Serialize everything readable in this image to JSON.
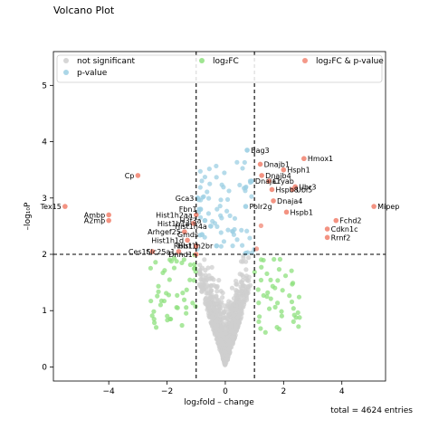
{
  "chart_data": {
    "type": "scatter",
    "title": "Volcano Plot",
    "xlabel": "log₂fold – change",
    "ylabel": "–log₁₀P",
    "xlim": [
      -5.9,
      5.5
    ],
    "ylim": [
      -0.25,
      5.6
    ],
    "xticks": [
      -4,
      -2,
      0,
      2,
      4
    ],
    "yticks": [
      0,
      1,
      2,
      3,
      4,
      5
    ],
    "grid": false,
    "legend_position": "top",
    "fc_cutoff": 1.0,
    "p_cutoff": 2.0,
    "categories": [
      {
        "key": "ns",
        "name": "not significant",
        "color": "#cfcfcf"
      },
      {
        "key": "p",
        "name": "p-value",
        "color": "#9ccfe3"
      },
      {
        "key": "fc",
        "name": "log₂FC",
        "color": "#8ee07e"
      },
      {
        "key": "both",
        "name": "log₂FC & p-value",
        "color": "#f28774"
      }
    ],
    "labeled_genes": [
      {
        "name": "Bag3",
        "x": 0.75,
        "y": 3.85
      },
      {
        "name": "Hmox1",
        "x": 2.7,
        "y": 3.7
      },
      {
        "name": "Dnajb1",
        "x": 1.2,
        "y": 3.6
      },
      {
        "name": "Hsph1",
        "x": 2.0,
        "y": 3.5
      },
      {
        "name": "Dnajb4",
        "x": 1.25,
        "y": 3.4
      },
      {
        "name": "Cryab",
        "x": 1.5,
        "y": 3.3
      },
      {
        "name": "Cp",
        "x": -3.0,
        "y": 3.4
      },
      {
        "name": "Dnaja1",
        "x": 0.9,
        "y": 3.3
      },
      {
        "name": "Ubr3",
        "x": 2.4,
        "y": 3.2
      },
      {
        "name": "Hspb8",
        "x": 1.6,
        "y": 3.15
      },
      {
        "name": "Ubl5",
        "x": 2.3,
        "y": 3.15
      },
      {
        "name": "Gca3",
        "x": -0.95,
        "y": 3.0
      },
      {
        "name": "Dnaja4",
        "x": 1.65,
        "y": 2.95
      },
      {
        "name": "Polr2g",
        "x": 0.7,
        "y": 2.85
      },
      {
        "name": "Fbn1",
        "x": -0.85,
        "y": 2.8
      },
      {
        "name": "Mipep",
        "x": 5.1,
        "y": 2.85
      },
      {
        "name": "Tex15",
        "x": -5.5,
        "y": 2.85
      },
      {
        "name": "Hspb1",
        "x": 2.1,
        "y": 2.75
      },
      {
        "name": "Hist1h2aa",
        "x": -1.0,
        "y": 2.7
      },
      {
        "name": "Ambp",
        "x": -4.0,
        "y": 2.7
      },
      {
        "name": "H3f3a",
        "x": -0.7,
        "y": 2.6
      },
      {
        "name": "A2mp",
        "x": -4.0,
        "y": 2.6
      },
      {
        "name": "Fchd2",
        "x": 3.8,
        "y": 2.6
      },
      {
        "name": "Hist1h1a",
        "x": -1.1,
        "y": 2.55
      },
      {
        "name": "Hist1h4a",
        "x": -0.5,
        "y": 2.5
      },
      {
        "name": "Cdkn1c",
        "x": 3.5,
        "y": 2.45
      },
      {
        "name": "Arhgef25",
        "x": -1.4,
        "y": 2.4
      },
      {
        "name": "Gmds",
        "x": -0.8,
        "y": 2.35
      },
      {
        "name": "Rrnf2",
        "x": 3.5,
        "y": 2.3
      },
      {
        "name": "Hist1h1d",
        "x": -1.3,
        "y": 2.25
      },
      {
        "name": "Rbb1",
        "x": -1.0,
        "y": 2.15
      },
      {
        "name": "Hist1h2br",
        "x": -0.3,
        "y": 2.15
      },
      {
        "name": "Ces1f",
        "x": -2.5,
        "y": 2.05
      },
      {
        "name": "Slc25a1",
        "x": -1.6,
        "y": 2.05
      },
      {
        "name": "Dnnd1",
        "x": -1.0,
        "y": 2.0
      }
    ]
  },
  "footer_note": "total = 4624 entries"
}
